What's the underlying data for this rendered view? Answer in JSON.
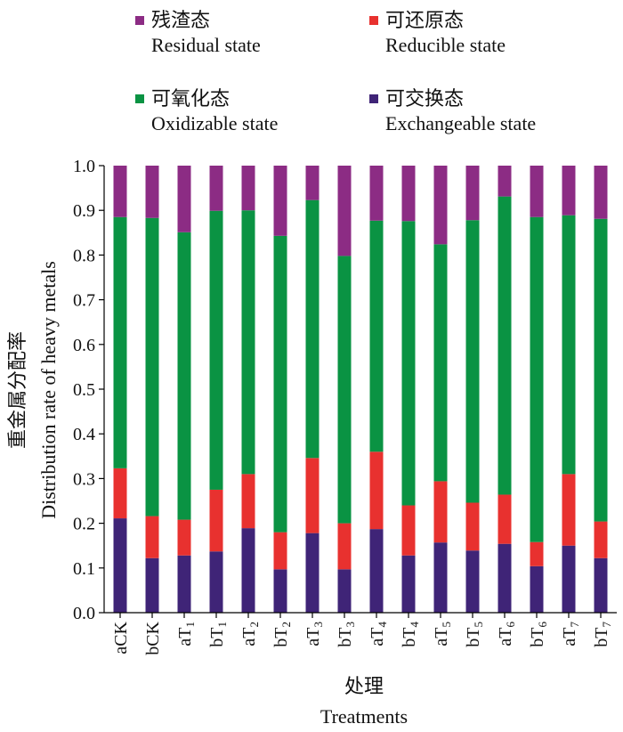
{
  "chart_data": {
    "type": "bar",
    "stacked": true,
    "title": "",
    "xlabel_cn": "处理",
    "xlabel_en": "Treatments",
    "ylabel_cn": "重金属分配率",
    "ylabel_en": "Distribution rate of heavy metals",
    "ylim": [
      0,
      1.0
    ],
    "yticks": [
      "0.0",
      "0.1",
      "0.2",
      "0.3",
      "0.4",
      "0.5",
      "0.6",
      "0.7",
      "0.8",
      "0.9",
      "1.0"
    ],
    "categories": [
      {
        "base": "aCK",
        "sub": ""
      },
      {
        "base": "bCK",
        "sub": ""
      },
      {
        "base": "aT",
        "sub": "1"
      },
      {
        "base": "bT",
        "sub": "1"
      },
      {
        "base": "aT",
        "sub": "2"
      },
      {
        "base": "bT",
        "sub": "2"
      },
      {
        "base": "aT",
        "sub": "3"
      },
      {
        "base": "bT",
        "sub": "3"
      },
      {
        "base": "aT",
        "sub": "4"
      },
      {
        "base": "bT",
        "sub": "4"
      },
      {
        "base": "aT",
        "sub": "5"
      },
      {
        "base": "bT",
        "sub": "5"
      },
      {
        "base": "aT",
        "sub": "6"
      },
      {
        "base": "bT",
        "sub": "6"
      },
      {
        "base": "aT",
        "sub": "7"
      },
      {
        "base": "bT",
        "sub": "7"
      }
    ],
    "series": [
      {
        "key": "exchangeable",
        "name_cn": "可交换态",
        "name_en": "Exchangeable state",
        "color": "#3f2477",
        "values": [
          0.211,
          0.122,
          0.128,
          0.137,
          0.189,
          0.097,
          0.178,
          0.097,
          0.187,
          0.128,
          0.157,
          0.139,
          0.154,
          0.104,
          0.15,
          0.122
        ]
      },
      {
        "key": "reducible",
        "name_cn": "可还原态",
        "name_en": "Reducible state",
        "color": "#e8312f",
        "values": [
          0.112,
          0.094,
          0.08,
          0.138,
          0.121,
          0.083,
          0.168,
          0.103,
          0.173,
          0.112,
          0.137,
          0.107,
          0.11,
          0.054,
          0.16,
          0.082
        ]
      },
      {
        "key": "oxidizable",
        "name_cn": "可氧化态",
        "name_en": "Oxidizable state",
        "color": "#0a9343",
        "values": [
          0.562,
          0.667,
          0.643,
          0.624,
          0.59,
          0.663,
          0.577,
          0.598,
          0.517,
          0.636,
          0.53,
          0.632,
          0.667,
          0.727,
          0.579,
          0.677
        ]
      },
      {
        "key": "residual",
        "name_cn": "残渣态",
        "name_en": "Residual state",
        "color": "#8c2c84",
        "values": [
          0.115,
          0.117,
          0.149,
          0.101,
          0.1,
          0.157,
          0.077,
          0.202,
          0.123,
          0.124,
          0.176,
          0.122,
          0.069,
          0.115,
          0.111,
          0.119
        ]
      }
    ],
    "legend": {
      "placement": "top",
      "order": [
        "residual",
        "reducible",
        "oxidizable",
        "exchangeable"
      ]
    }
  }
}
